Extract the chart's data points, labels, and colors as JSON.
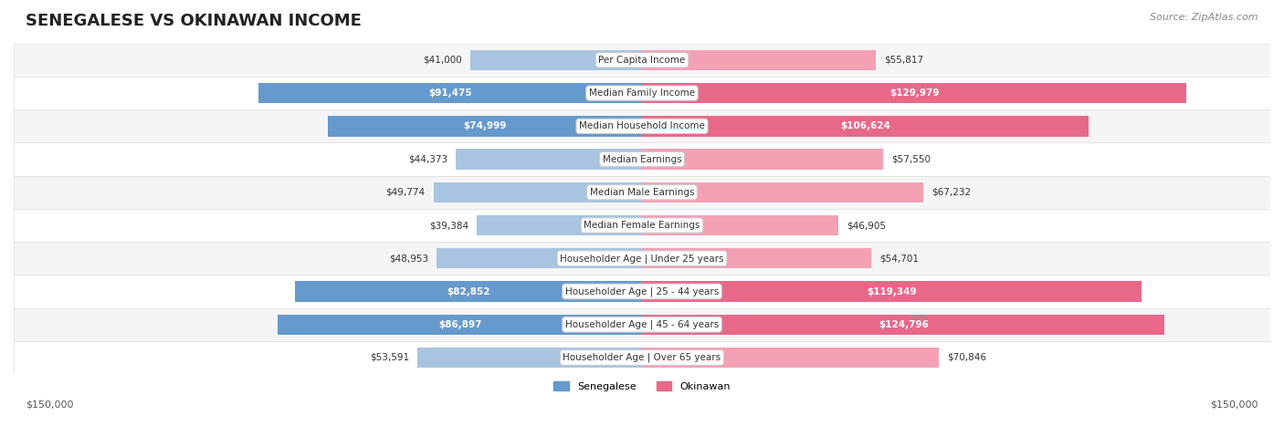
{
  "title": "SENEGALESE VS OKINAWAN INCOME",
  "source": "Source: ZipAtlas.com",
  "categories": [
    "Per Capita Income",
    "Median Family Income",
    "Median Household Income",
    "Median Earnings",
    "Median Male Earnings",
    "Median Female Earnings",
    "Householder Age | Under 25 years",
    "Householder Age | 25 - 44 years",
    "Householder Age | 45 - 64 years",
    "Householder Age | Over 65 years"
  ],
  "senegalese": [
    41000,
    91475,
    74999,
    44373,
    49774,
    39384,
    48953,
    82852,
    86897,
    53591
  ],
  "okinawan": [
    55817,
    129979,
    106624,
    57550,
    67232,
    46905,
    54701,
    119349,
    124796,
    70846
  ],
  "senegalese_labels": [
    "$41,000",
    "$91,475",
    "$74,999",
    "$44,373",
    "$49,774",
    "$39,384",
    "$48,953",
    "$82,852",
    "$86,897",
    "$53,591"
  ],
  "okinawan_labels": [
    "$55,817",
    "$129,979",
    "$106,624",
    "$57,550",
    "$67,232",
    "$46,905",
    "$54,701",
    "$119,349",
    "$124,796",
    "$70,846"
  ],
  "senegalese_color_light": "#a8c4e0",
  "senegalese_color_dark": "#6699cc",
  "okinawan_color_light": "#f4a0b5",
  "okinawan_color_dark": "#e8688a",
  "max_val": 150000,
  "row_bg_light": "#f5f5f5",
  "row_bg_white": "#ffffff",
  "label_bg": "#ffffff",
  "legend_senegalese": "Senegalese",
  "legend_okinawan": "Okinawan",
  "bottom_label_left": "$150,000",
  "bottom_label_right": "$150,000"
}
